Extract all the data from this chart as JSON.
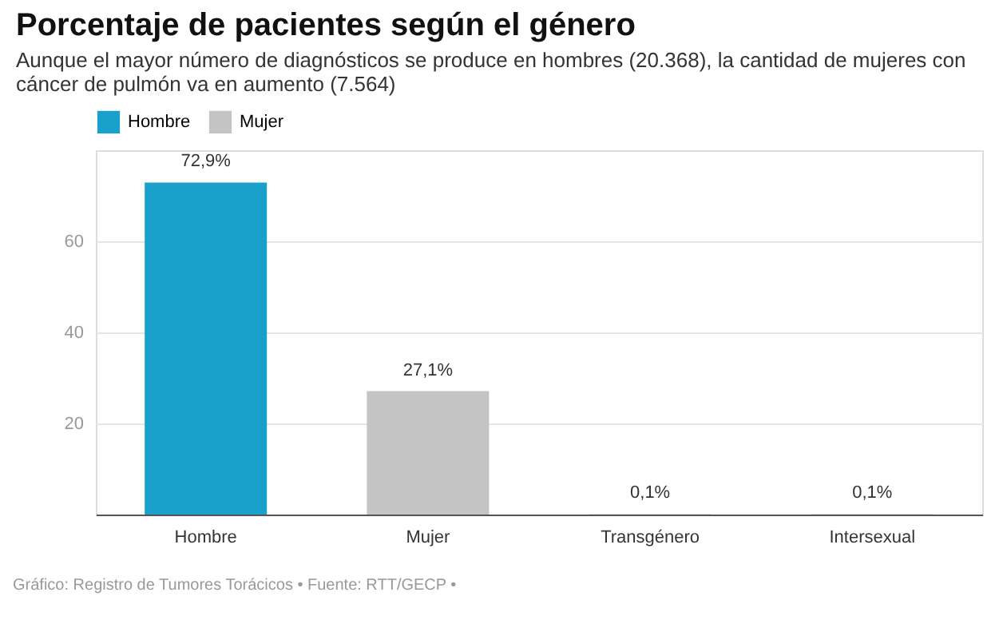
{
  "chart_data": {
    "type": "bar",
    "title": "Porcentaje de pacientes según el género",
    "subtitle": "Aunque el mayor número de diagnósticos se produce en hombres (20.368), la cantidad de mujeres con cáncer de pulmón va en aumento (7.564)",
    "categories": [
      "Hombre",
      "Mujer",
      "Transgénero",
      "Intersexual"
    ],
    "series": [
      {
        "name": "Hombre",
        "color": "#1aa1cb",
        "values": [
          72.9,
          null,
          null,
          null
        ],
        "value_labels": [
          "72,9%",
          null,
          null,
          null
        ]
      },
      {
        "name": "Mujer",
        "color": "#c4c4c4",
        "values": [
          null,
          27.1,
          null,
          null
        ],
        "value_labels": [
          null,
          "27,1%",
          null,
          null
        ]
      },
      {
        "color": "#c4c4c4",
        "values": [
          null,
          null,
          0.1,
          0.1
        ],
        "value_labels": [
          null,
          null,
          "0,1%",
          "0,1%"
        ]
      }
    ],
    "ylim": [
      0,
      80
    ],
    "yticks": [
      20,
      40,
      60
    ],
    "grid": "y",
    "legend": "top left",
    "annotations": [
      "Gráfico: Registro de Tumores Torácicos • Fuente: RTT/GECP •"
    ]
  }
}
